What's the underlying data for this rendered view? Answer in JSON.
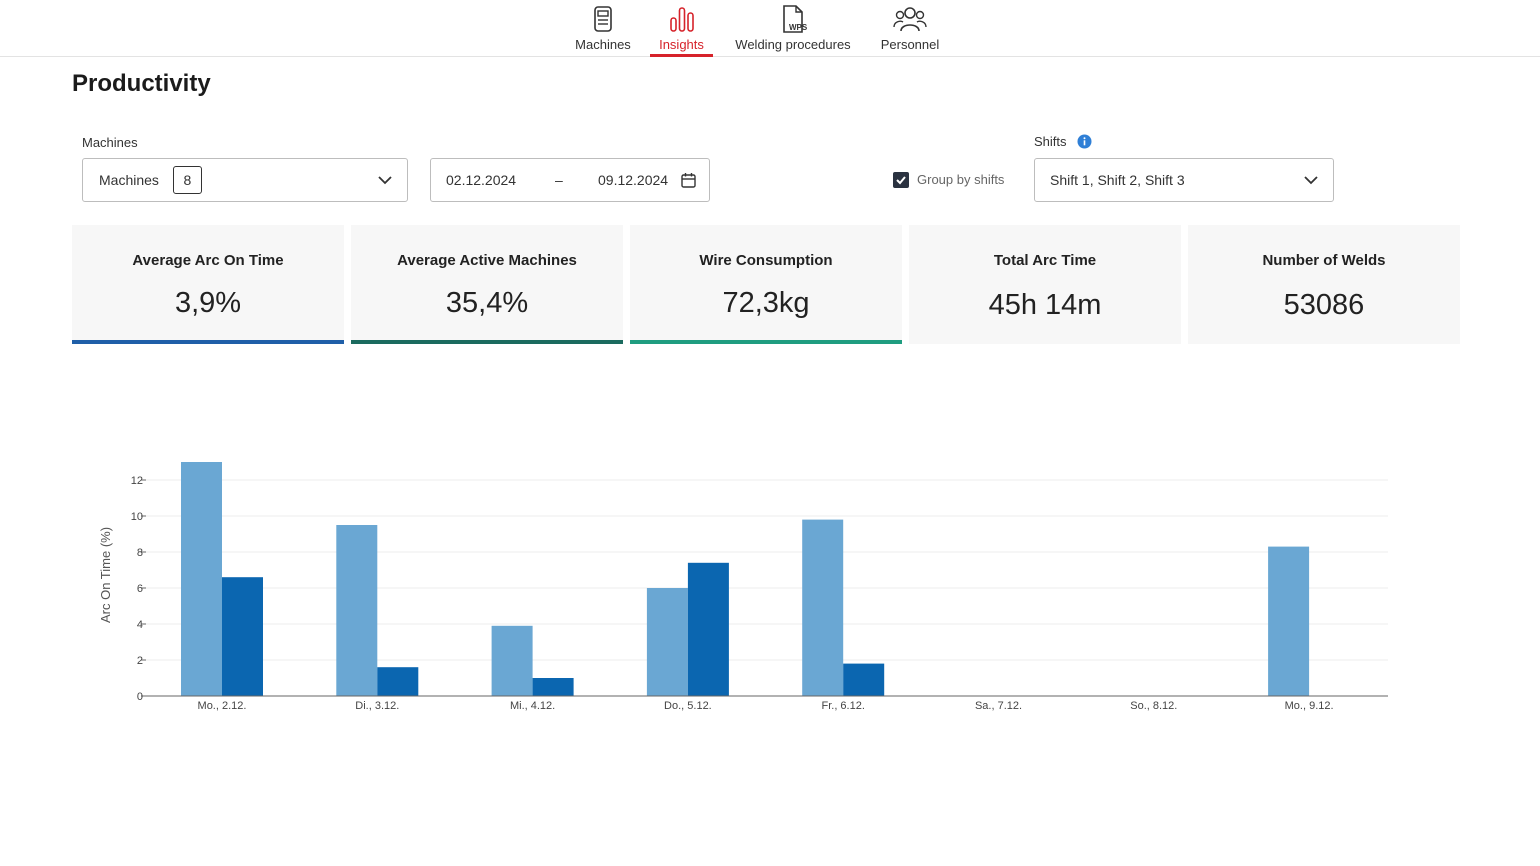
{
  "nav": {
    "items": [
      {
        "label": "Machines",
        "icon": "machine-icon",
        "active": false
      },
      {
        "label": "Insights",
        "icon": "bar-chart-icon",
        "active": true
      },
      {
        "label": "Welding procedures",
        "icon": "wps-document-icon",
        "active": false
      },
      {
        "label": "Personnel",
        "icon": "people-icon",
        "active": false
      }
    ]
  },
  "page": {
    "title": "Productivity"
  },
  "filters": {
    "machines_label": "Machines",
    "machines_value": "Machines",
    "machines_count": "8",
    "date_from": "02.12.2024",
    "date_separator": "–",
    "date_to": "09.12.2024",
    "group_by_shifts_label": "Group by shifts",
    "group_by_shifts_checked": true,
    "shifts_label": "Shifts",
    "shifts_value": "Shift 1, Shift 2, Shift 3"
  },
  "kpis": [
    {
      "title": "Average Arc On Time",
      "value": "3,9%",
      "accent": "#1f5fa8"
    },
    {
      "title": "Average Active Machines",
      "value": "35,4%",
      "accent": "#1b6b5f"
    },
    {
      "title": "Wire Consumption",
      "value": "72,3kg",
      "accent": "#1f9d80"
    },
    {
      "title": "Total Arc Time",
      "value": "45h 14m",
      "accent": ""
    },
    {
      "title": "Number of Welds",
      "value": "53086",
      "accent": ""
    }
  ],
  "colors": {
    "accent": "#d6222a",
    "series_light": "#6aa7d3",
    "series_dark": "#0b66b0"
  },
  "chart_data": {
    "type": "bar",
    "ylabel": "Arc On Time (%)",
    "xlabel": "",
    "ylim": [
      0,
      13
    ],
    "yticks": [
      0,
      2,
      4,
      6,
      8,
      10,
      12
    ],
    "grid": true,
    "categories": [
      "Mo., 2.12.",
      "Di., 3.12.",
      "Mi., 4.12.",
      "Do., 5.12.",
      "Fr., 6.12.",
      "Sa., 7.12.",
      "So., 8.12.",
      "Mo., 9.12."
    ],
    "series": [
      {
        "values": [
          13.0,
          9.5,
          3.9,
          6.0,
          9.8,
          0,
          0,
          8.3
        ]
      },
      {
        "values": [
          6.6,
          1.6,
          1.0,
          7.4,
          1.8,
          0,
          0,
          0
        ]
      }
    ]
  }
}
